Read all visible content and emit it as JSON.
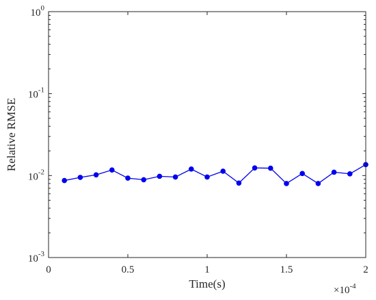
{
  "chart_data": {
    "type": "line",
    "title": "",
    "xlabel": "Time(s)",
    "ylabel": "Relative RMSE",
    "x_multiplier": {
      "base": "×10",
      "exponent": "-4"
    },
    "xlim": [
      0,
      2
    ],
    "ylim": [
      0.001,
      1
    ],
    "yscale": "log",
    "grid": false,
    "x_ticks": [
      0,
      0.5,
      1,
      1.5,
      2
    ],
    "x_tick_labels": [
      "0",
      "0.5",
      "1",
      "1.5",
      "2"
    ],
    "y_ticks": [
      {
        "value": 1,
        "base": "10",
        "exponent": "0"
      },
      {
        "value": 0.1,
        "base": "10",
        "exponent": "-1"
      },
      {
        "value": 0.01,
        "base": "10",
        "exponent": "-2"
      },
      {
        "value": 0.001,
        "base": "10",
        "exponent": "-3"
      }
    ],
    "series": [
      {
        "color": "#0000ee",
        "marker": "circle",
        "x": [
          0.1,
          0.2,
          0.3,
          0.4,
          0.5,
          0.6,
          0.7,
          0.8,
          0.9,
          1.0,
          1.1,
          1.2,
          1.3,
          1.4,
          1.5,
          1.6,
          1.7,
          1.8,
          1.9,
          2.0
        ],
        "y": [
          0.0087,
          0.0095,
          0.0102,
          0.0117,
          0.0093,
          0.0089,
          0.0098,
          0.0096,
          0.012,
          0.0096,
          0.0113,
          0.0081,
          0.0124,
          0.0123,
          0.008,
          0.0106,
          0.008,
          0.011,
          0.0105,
          0.0136
        ]
      }
    ]
  }
}
